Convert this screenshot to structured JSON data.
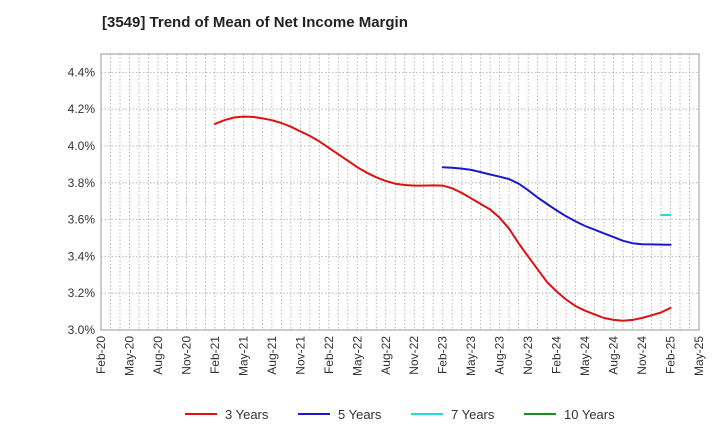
{
  "chart_data": {
    "type": "line",
    "title": "[3549]  Trend of Mean of Net Income Margin",
    "xlabel": "",
    "ylabel": "",
    "x_ticks": [
      "Feb-20",
      "May-20",
      "Aug-20",
      "Nov-20",
      "Feb-21",
      "May-21",
      "Aug-21",
      "Nov-21",
      "Feb-22",
      "May-22",
      "Aug-22",
      "Nov-22",
      "Feb-23",
      "May-23",
      "Aug-23",
      "Nov-23",
      "Feb-24",
      "May-24",
      "Aug-24",
      "Nov-24",
      "Feb-25",
      "May-25"
    ],
    "y_ticks": [
      "3.0%",
      "3.2%",
      "3.4%",
      "3.6%",
      "3.8%",
      "4.0%",
      "4.2%",
      "4.4%"
    ],
    "ylim": [
      3.0,
      4.5
    ],
    "y_unit": "%",
    "grid": true,
    "legend_position": "bottom",
    "series": [
      {
        "name": "3 Years",
        "color": "#dd1111",
        "x": [
          "Feb-21",
          "Mar-21",
          "Apr-21",
          "May-21",
          "Jun-21",
          "Jul-21",
          "Aug-21",
          "Sep-21",
          "Oct-21",
          "Nov-21",
          "Dec-21",
          "Jan-22",
          "Feb-22",
          "Mar-22",
          "Apr-22",
          "May-22",
          "Jun-22",
          "Jul-22",
          "Aug-22",
          "Sep-22",
          "Oct-22",
          "Nov-22",
          "Dec-22",
          "Jan-23",
          "Feb-23",
          "Mar-23",
          "Apr-23",
          "May-23",
          "Jun-23",
          "Jul-23",
          "Aug-23",
          "Sep-23",
          "Oct-23",
          "Nov-23",
          "Dec-23",
          "Jan-24",
          "Feb-24",
          "Mar-24",
          "Apr-24",
          "May-24",
          "Jun-24",
          "Jul-24",
          "Aug-24",
          "Sep-24",
          "Oct-24",
          "Nov-24",
          "Dec-24",
          "Jan-25",
          "Feb-25"
        ],
        "values": [
          4.12,
          4.14,
          4.155,
          4.16,
          4.158,
          4.15,
          4.14,
          4.125,
          4.105,
          4.08,
          4.055,
          4.025,
          3.99,
          3.955,
          3.92,
          3.885,
          3.855,
          3.83,
          3.81,
          3.795,
          3.788,
          3.785,
          3.785,
          3.786,
          3.785,
          3.77,
          3.745,
          3.715,
          3.685,
          3.655,
          3.61,
          3.55,
          3.47,
          3.4,
          3.33,
          3.26,
          3.21,
          3.165,
          3.13,
          3.105,
          3.085,
          3.065,
          3.055,
          3.05,
          3.055,
          3.065,
          3.08,
          3.095,
          3.12
        ]
      },
      {
        "name": "5 Years",
        "color": "#1a1acc",
        "x": [
          "Feb-23",
          "Mar-23",
          "Apr-23",
          "May-23",
          "Jun-23",
          "Jul-23",
          "Aug-23",
          "Sep-23",
          "Oct-23",
          "Nov-23",
          "Dec-23",
          "Jan-24",
          "Feb-24",
          "Mar-24",
          "Apr-24",
          "May-24",
          "Jun-24",
          "Jul-24",
          "Aug-24",
          "Sep-24",
          "Oct-24",
          "Nov-24",
          "Dec-24",
          "Jan-25",
          "Feb-25"
        ],
        "values": [
          3.885,
          3.882,
          3.877,
          3.87,
          3.858,
          3.845,
          3.833,
          3.82,
          3.795,
          3.76,
          3.72,
          3.685,
          3.65,
          3.618,
          3.59,
          3.565,
          3.545,
          3.525,
          3.505,
          3.485,
          3.472,
          3.466,
          3.465,
          3.464,
          3.463
        ]
      },
      {
        "name": "7 Years",
        "color": "#22dddd",
        "x": [
          "Jan-25",
          "Feb-25"
        ],
        "values": [
          3.625,
          3.625
        ]
      },
      {
        "name": "10 Years",
        "color": "#228822",
        "x": [],
        "values": []
      }
    ]
  }
}
